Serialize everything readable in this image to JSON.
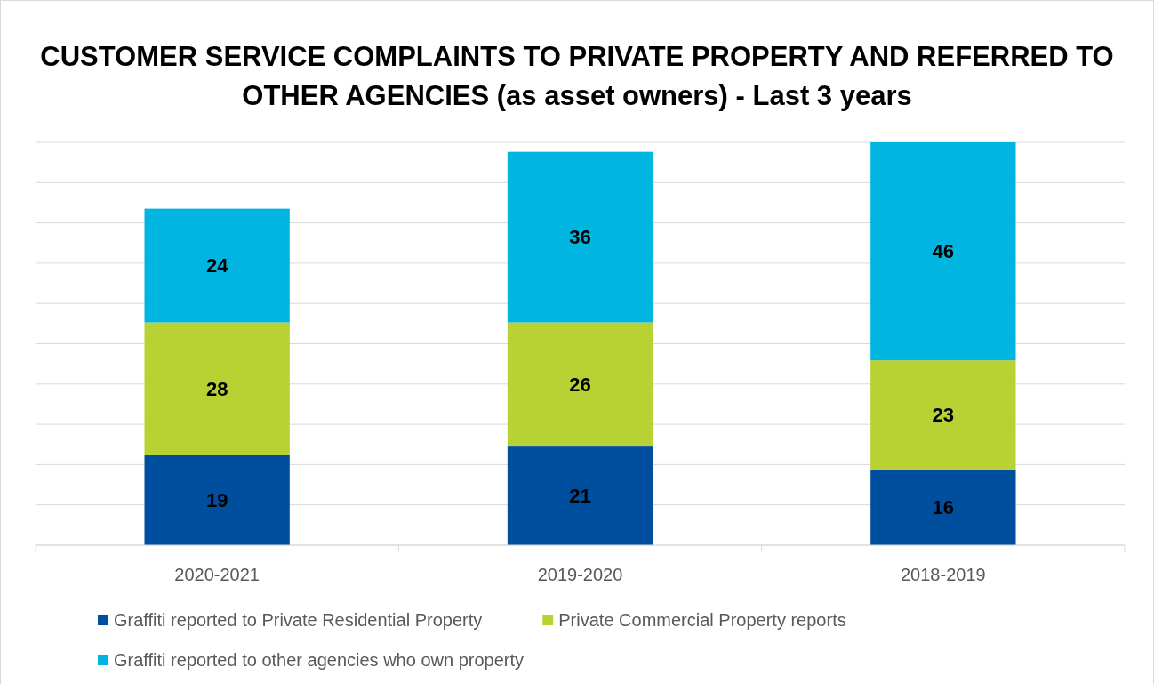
{
  "chart_data": {
    "type": "bar",
    "title": "CUSTOMER SERVICE COMPLAINTS TO PRIVATE PROPERTY AND REFERRED TO OTHER AGENCIES (as asset owners) - Last 3 years",
    "categories": [
      "2020-2021",
      "2019-2020",
      "2018-2019"
    ],
    "stacked": true,
    "data_labels": true,
    "grid": "y",
    "legend": "bottom",
    "series": [
      {
        "name": "Graffiti reported to Private Residential Property",
        "color": "#004f9e",
        "values": [
          19,
          21,
          16
        ]
      },
      {
        "name": "Private Commercial Property reports",
        "color": "#b8d133",
        "values": [
          28,
          26,
          23
        ]
      },
      {
        "name": "Graffiti reported to other agencies who own property",
        "color": "#00b5e0",
        "values": [
          24,
          36,
          46
        ]
      }
    ]
  }
}
